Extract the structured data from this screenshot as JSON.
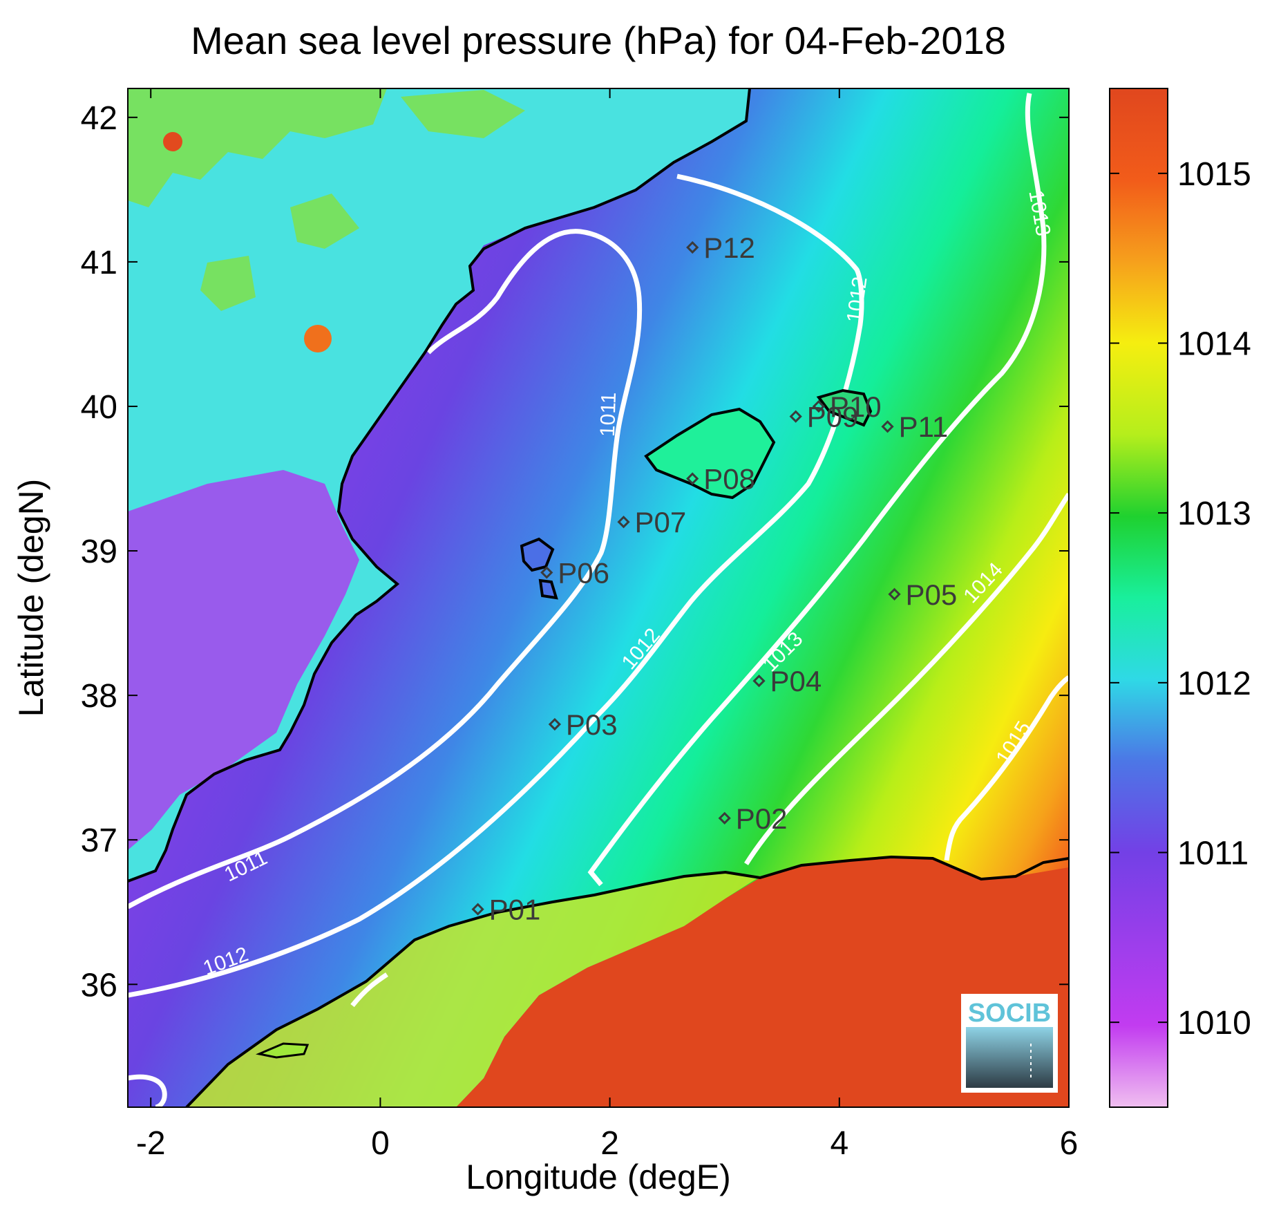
{
  "title": "Mean sea level pressure (hPa) for 04-Feb-2018",
  "axes": {
    "xlabel": "Longitude (degE)",
    "ylabel": "Latitude (degN)",
    "xlim": [
      -2.2,
      6.0
    ],
    "ylim": [
      35.15,
      42.2
    ],
    "xticks": [
      "-2",
      "0",
      "2",
      "4",
      "6"
    ],
    "yticks": [
      "36",
      "37",
      "38",
      "39",
      "40",
      "41",
      "42"
    ]
  },
  "colorbar": {
    "range": [
      1009.5,
      1015.5
    ],
    "ticks": [
      "1010",
      "1011",
      "1012",
      "1013",
      "1014",
      "1015"
    ],
    "colors": [
      "#f0bff0",
      "#c23cf0",
      "#7340e6",
      "#4c77e6",
      "#2fd9e6",
      "#19ef9c",
      "#1fd12f",
      "#b5ee1c",
      "#f5ee10",
      "#f6a01c",
      "#f25c1a",
      "#e0471e"
    ]
  },
  "contours": [
    {
      "label": "1011",
      "color": "#ffffff"
    },
    {
      "label": "1012",
      "color": "#ffffff"
    },
    {
      "label": "1013",
      "color": "#ffffff"
    },
    {
      "label": "1014",
      "color": "#ffffff"
    },
    {
      "label": "1015",
      "color": "#ffffff"
    }
  ],
  "points": [
    {
      "id": "P01",
      "lon": 0.85,
      "lat": 36.52
    },
    {
      "id": "P02",
      "lon": 3.0,
      "lat": 37.15
    },
    {
      "id": "P03",
      "lon": 1.52,
      "lat": 37.8
    },
    {
      "id": "P04",
      "lon": 3.3,
      "lat": 38.1
    },
    {
      "id": "P05",
      "lon": 4.48,
      "lat": 38.7
    },
    {
      "id": "P06",
      "lon": 1.45,
      "lat": 38.85
    },
    {
      "id": "P07",
      "lon": 2.12,
      "lat": 39.2
    },
    {
      "id": "P08",
      "lon": 2.72,
      "lat": 39.5
    },
    {
      "id": "P09",
      "lon": 3.62,
      "lat": 39.93
    },
    {
      "id": "P10",
      "lon": 3.82,
      "lat": 40.0
    },
    {
      "id": "P11",
      "lon": 4.42,
      "lat": 39.86
    },
    {
      "id": "P12",
      "lon": 2.72,
      "lat": 41.1
    }
  ],
  "logo_text": "SOCIB"
}
